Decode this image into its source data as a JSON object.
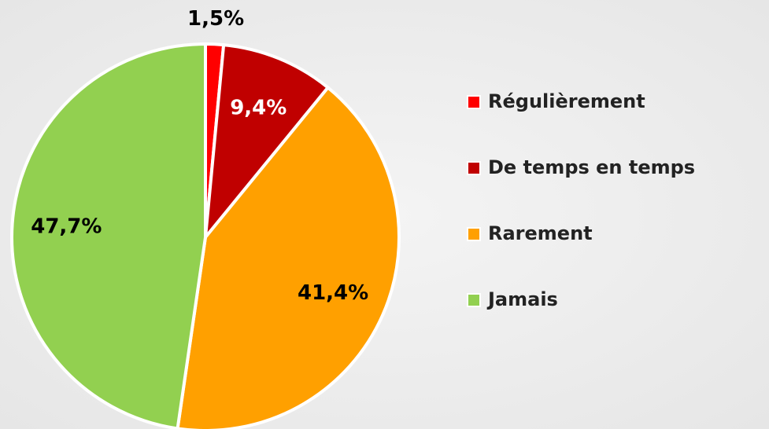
{
  "chart_data": {
    "type": "pie",
    "categories": [
      "Régulièrement",
      "De temps en temps",
      "Rarement",
      "Jamais"
    ],
    "values": [
      1.5,
      9.4,
      41.4,
      47.7
    ],
    "value_labels": [
      "1,5%",
      "9,4%",
      "41,4%",
      "47,7%"
    ],
    "colors": [
      "#ff0000",
      "#c00000",
      "#ffa000",
      "#92d050"
    ],
    "legend": "right"
  }
}
